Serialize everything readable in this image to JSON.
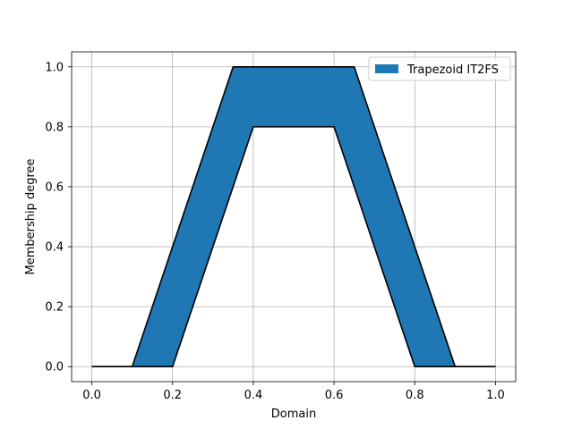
{
  "chart_data": {
    "type": "area",
    "title": "",
    "xlabel": "Domain",
    "ylabel": "Membership degree",
    "xlim": [
      -0.05,
      1.05
    ],
    "ylim": [
      -0.05,
      1.05
    ],
    "xticks": [
      0.0,
      0.2,
      0.4,
      0.6,
      0.8,
      1.0
    ],
    "yticks": [
      0.0,
      0.2,
      0.4,
      0.6,
      0.8,
      1.0
    ],
    "xtick_labels": [
      "0.0",
      "0.2",
      "0.4",
      "0.6",
      "0.8",
      "1.0"
    ],
    "ytick_labels": [
      "0.0",
      "0.2",
      "0.4",
      "0.6",
      "0.8",
      "1.0"
    ],
    "grid": true,
    "legend_position": "top-right",
    "series": [
      {
        "name": "Trapezoid IT2FS",
        "color": "#1f77b4",
        "edge_color": "#000000",
        "upper": {
          "x": [
            0.0,
            0.1,
            0.35,
            0.65,
            0.9,
            1.0
          ],
          "y": [
            0.0,
            0.0,
            1.0,
            1.0,
            0.0,
            0.0
          ]
        },
        "lower": {
          "x": [
            0.0,
            0.2,
            0.4,
            0.6,
            0.8,
            1.0
          ],
          "y": [
            0.0,
            0.0,
            0.8,
            0.8,
            0.0,
            0.0
          ]
        }
      }
    ]
  }
}
